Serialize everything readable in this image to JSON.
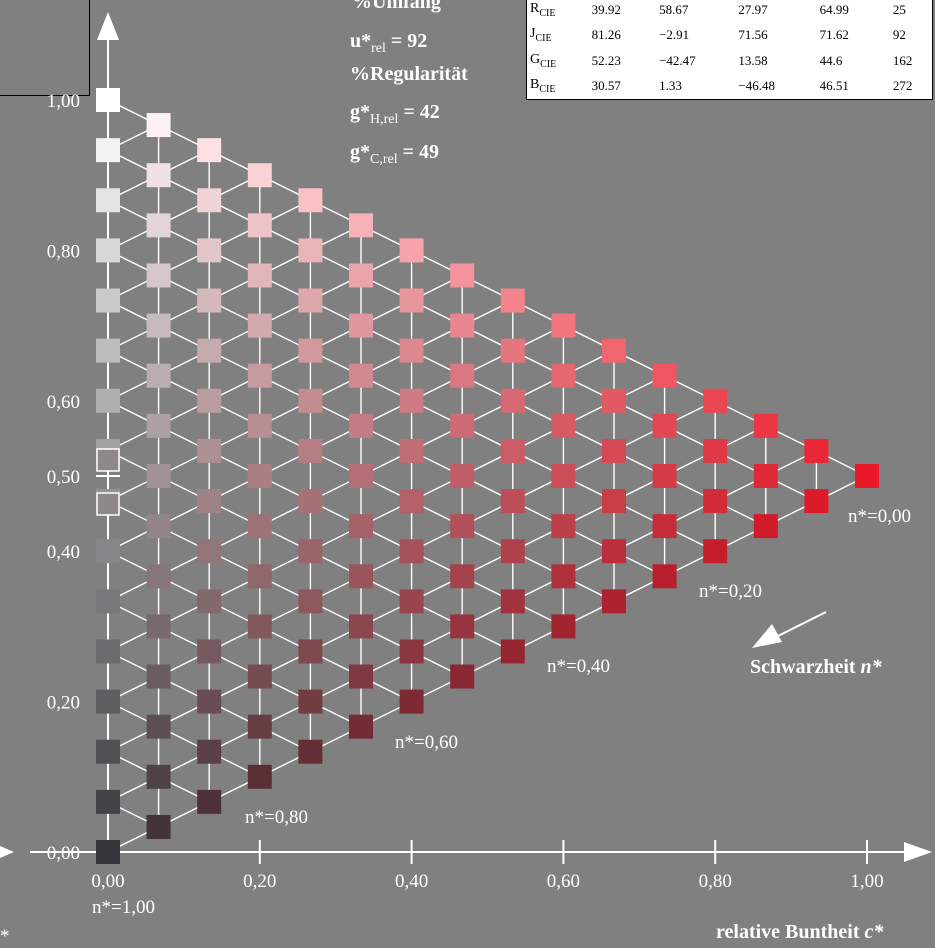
{
  "colors": {
    "background": "#808080",
    "grid_line": "#ffffff",
    "hue_red": [
      232,
      24,
      40
    ],
    "black": [
      54,
      54,
      58
    ],
    "white": [
      255,
      255,
      255
    ]
  },
  "stats": {
    "umfang_title": "%Umfang",
    "u_label": "u*",
    "u_sub": "rel",
    "u_value": " = 92",
    "regularitaet_title": "%Regularität",
    "gh_label": "g*",
    "gh_sub": "H,rel",
    "gh_value": " = 42",
    "gc_label": "g*",
    "gc_sub": "C,rel",
    "gc_value": " = 49"
  },
  "cie_table": {
    "rows": [
      {
        "name": "R",
        "sub": "CIE",
        "v1": "39.92",
        "v2": "58.67",
        "v3": "27.97",
        "v4": "64.99",
        "v5": "25"
      },
      {
        "name": "J",
        "sub": "CIE",
        "v1": "81.26",
        "v2": "−2.91",
        "v3": "71.56",
        "v4": "71.62",
        "v5": "92"
      },
      {
        "name": "G",
        "sub": "CIE",
        "v1": "52.23",
        "v2": "−42.47",
        "v3": "13.58",
        "v4": "44.6",
        "v5": "162"
      },
      {
        "name": "B",
        "sub": "CIE",
        "v1": "30.57",
        "v2": "1.33",
        "v3": "−46.48",
        "v4": "46.51",
        "v5": "272"
      }
    ]
  },
  "axes": {
    "x_ticks": [
      "0,00",
      "0,20",
      "0,40",
      "0,60",
      "0,80",
      "1,00"
    ],
    "y_ticks": [
      "0,00",
      "0,20",
      "0,40",
      "0,50",
      "0,60",
      "0,80",
      "1,00"
    ],
    "x_label": "relative Buntheit c*",
    "x_label_text": "relative Buntheit ",
    "x_label_var": "c*",
    "corner_mark": "*"
  },
  "chart_data": {
    "type": "triangle-color-grid",
    "steps": 15,
    "x_range": [
      0,
      1
    ],
    "y_range": [
      0,
      1
    ],
    "blackness_labels": [
      {
        "text": "n*=0,00",
        "value": 0.0
      },
      {
        "text": "n*=0,20",
        "value": 0.2
      },
      {
        "text": "n*=0,40",
        "value": 0.4
      },
      {
        "text": "n*=0,60",
        "value": 0.6
      },
      {
        "text": "n*=0,80",
        "value": 0.8
      },
      {
        "text": "n*=1,00",
        "value": 1.0
      }
    ],
    "direction_label": "Schwarzheit n*",
    "direction_label_text": "Schwarzheit ",
    "direction_label_var": "n*"
  }
}
